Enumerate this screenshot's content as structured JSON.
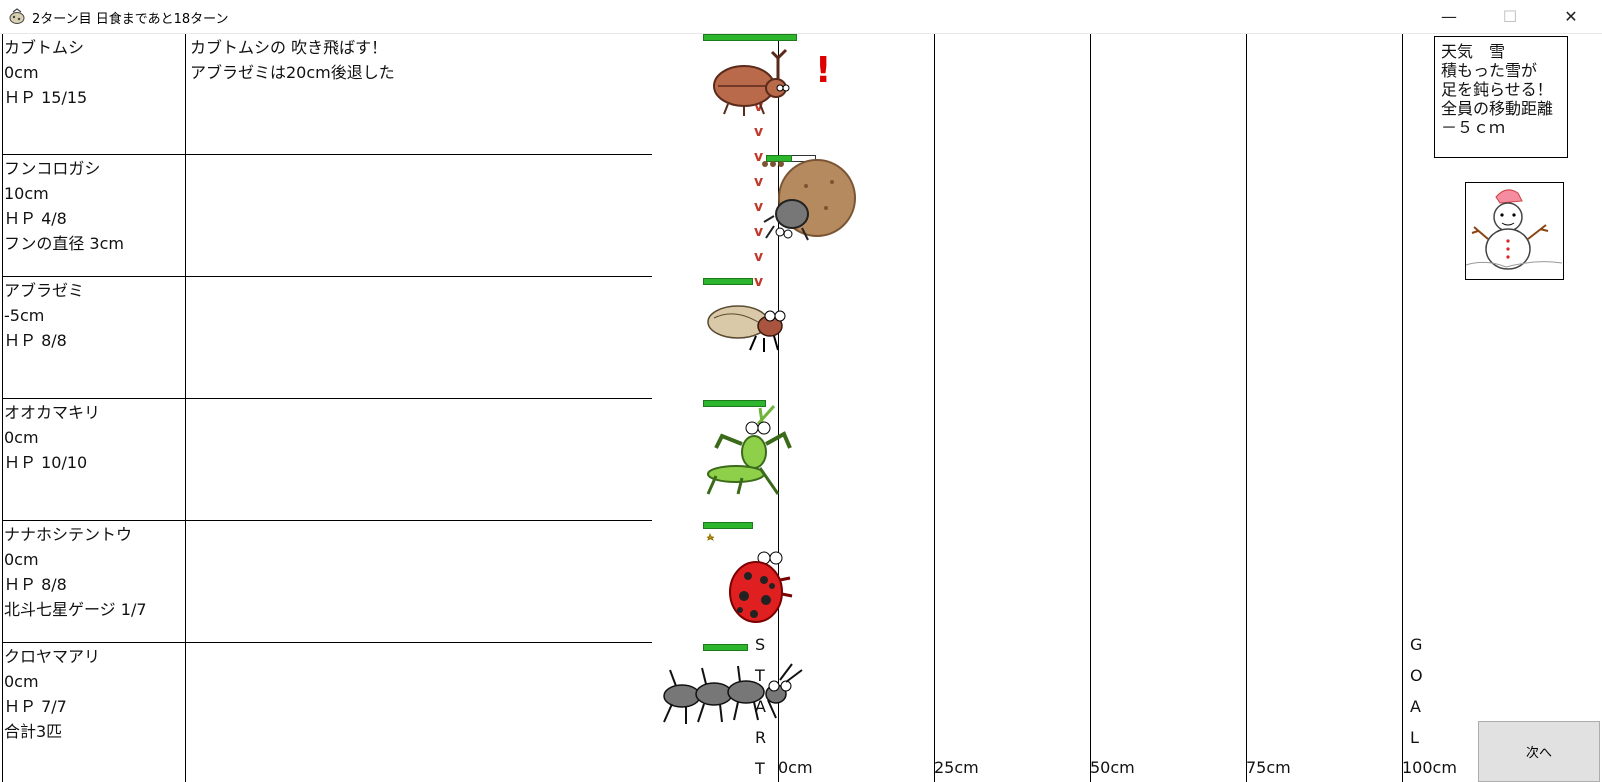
{
  "window": {
    "title": "2ターン目 日食まであと18ターン",
    "minimize": "—",
    "maximize": "☐",
    "close": "✕"
  },
  "players": [
    {
      "name": "カブトムシ",
      "position": "0cm",
      "hp": "ＨＰ 15/15",
      "extra": "",
      "log": [
        "カブトムシの 吹き飛ばす！",
        "アブラゼミは20cm後退した"
      ],
      "hp_fraction": 1.0
    },
    {
      "name": "フンコロガシ",
      "position": "10cm",
      "hp": "ＨＰ 4/8",
      "extra": "フンの直径 3cm",
      "log": [],
      "hp_fraction": 0.5
    },
    {
      "name": "アブラゼミ",
      "position": "-5cm",
      "hp": "ＨＰ 8/8",
      "extra": "",
      "log": [],
      "hp_fraction": 1.0
    },
    {
      "name": "オオカマキリ",
      "position": "0cm",
      "hp": "ＨＰ 10/10",
      "extra": "",
      "log": [],
      "hp_fraction": 1.0
    },
    {
      "name": "ナナホシテントウ",
      "position": "0cm",
      "hp": "ＨＰ 8/8",
      "extra": "北斗七星ゲージ 1/7",
      "log": [],
      "hp_fraction": 1.0
    },
    {
      "name": "クロヤマアリ",
      "position": "0cm",
      "hp": "ＨＰ 7/7",
      "extra": "合計3匹",
      "log": [],
      "hp_fraction": 1.0
    }
  ],
  "track": {
    "ticks": [
      "0cm",
      "25cm",
      "50cm",
      "75cm",
      "100cm"
    ],
    "start_letters": [
      "S",
      "T",
      "A",
      "R",
      "T"
    ],
    "goal_letters": [
      "G",
      "O",
      "A",
      "L"
    ],
    "alert": "!",
    "arrow_glyph": "v"
  },
  "weather": {
    "line1": "天気　雪",
    "line2": "積もった雪が",
    "line3": "足を鈍らせる！",
    "line4": "全員の移動距離",
    "line5": "－５ｃｍ",
    "icon": "snowman-icon"
  },
  "next_button": "次へ",
  "colors": {
    "hp": "#2db52d",
    "alert": "#dd0000",
    "arrow": "#c0392b"
  }
}
